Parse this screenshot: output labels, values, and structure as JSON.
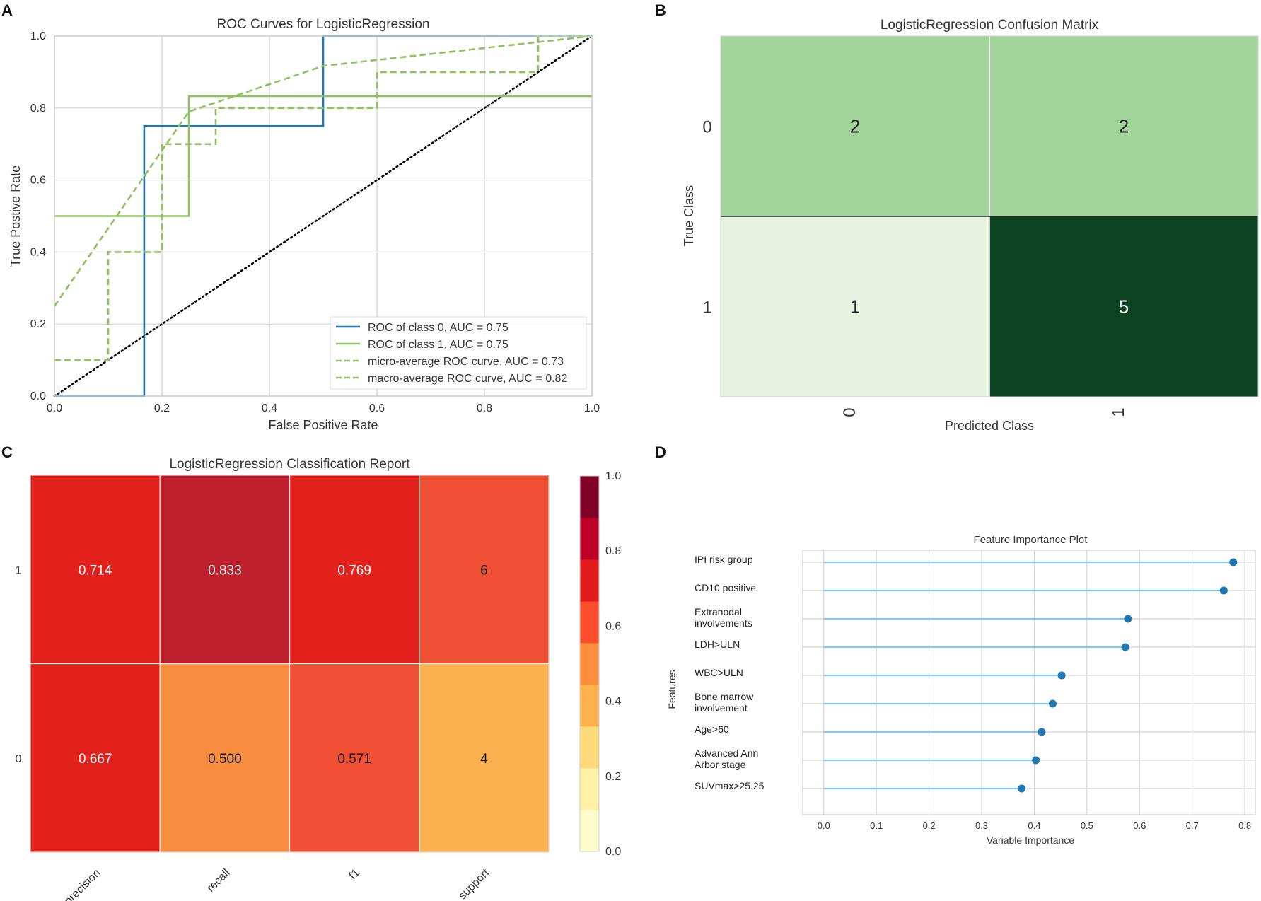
{
  "panel_labels": [
    "A",
    "B",
    "C",
    "D"
  ],
  "chart_data": [
    {
      "type": "line",
      "title": "ROC Curves for LogisticRegression",
      "xlabel": "False Positive Rate",
      "ylabel": "True Postive Rate",
      "xlim": [
        0,
        1
      ],
      "ylim": [
        0,
        1
      ],
      "xticks": [
        "0.0",
        "0.2",
        "0.4",
        "0.6",
        "0.8",
        "1.0"
      ],
      "yticks": [
        "0.0",
        "0.2",
        "0.4",
        "0.6",
        "0.8",
        "1.0"
      ],
      "grid": true,
      "legend_position": "lower-right",
      "series": [
        {
          "name": "ROC of class 0, AUC = 0.75",
          "color": "#1f77b4",
          "dash": false,
          "points": [
            [
              0,
              0
            ],
            [
              0.167,
              0
            ],
            [
              0.167,
              0.75
            ],
            [
              0.5,
              0.75
            ],
            [
              0.5,
              1
            ],
            [
              1,
              1
            ]
          ]
        },
        {
          "name": "ROC of class 1, AUC = 0.75",
          "color": "#8dc35f",
          "dash": false,
          "points": [
            [
              0,
              0.5
            ],
            [
              0.25,
              0.5
            ],
            [
              0.25,
              0.833
            ],
            [
              1,
              0.833
            ]
          ]
        },
        {
          "name": "micro-average ROC curve, AUC = 0.73",
          "color": "#8dc35f",
          "dash": true,
          "points": [
            [
              0,
              0.1
            ],
            [
              0.1,
              0.1
            ],
            [
              0.1,
              0.4
            ],
            [
              0.2,
              0.4
            ],
            [
              0.2,
              0.7
            ],
            [
              0.3,
              0.7
            ],
            [
              0.3,
              0.8
            ],
            [
              0.6,
              0.8
            ],
            [
              0.6,
              0.9
            ],
            [
              0.9,
              0.9
            ],
            [
              0.9,
              1
            ],
            [
              1,
              1
            ]
          ]
        },
        {
          "name": "macro-average ROC curve, AUC = 0.82",
          "color": "#8dc35f",
          "dash": true,
          "points": [
            [
              0,
              0.25
            ],
            [
              0.25,
              0.79
            ],
            [
              0.5,
              0.917
            ],
            [
              1,
              1
            ]
          ]
        }
      ],
      "reference_line": {
        "points": [
          [
            0,
            0
          ],
          [
            1,
            1
          ]
        ],
        "color": "#000000",
        "style": "dotted"
      }
    },
    {
      "type": "heatmap",
      "title": "LogisticRegression Confusion Matrix",
      "xlabel": "Predicted Class",
      "ylabel": "True Class",
      "row_labels": [
        "0",
        "1"
      ],
      "col_labels": [
        "0",
        "1"
      ],
      "values": [
        [
          2,
          2
        ],
        [
          1,
          5
        ]
      ],
      "cell_colors": [
        [
          "#a3d49b",
          "#a3d49b"
        ],
        [
          "#e6f3df",
          "#0c4423"
        ]
      ],
      "text_colors": [
        [
          "#222222",
          "#222222"
        ],
        [
          "#222222",
          "#ffffff"
        ]
      ]
    },
    {
      "type": "heatmap",
      "title": "LogisticRegression Classification Report",
      "row_labels": [
        "1",
        "0"
      ],
      "col_labels": [
        "precision",
        "recall",
        "f1",
        "support"
      ],
      "values": [
        [
          "0.714",
          "0.833",
          "0.769",
          "6"
        ],
        [
          "0.667",
          "0.500",
          "0.571",
          "4"
        ]
      ],
      "cell_colors": [
        [
          "#e3211c",
          "#bd1f2d",
          "#e3211c",
          "#ef4f32"
        ],
        [
          "#e3211c",
          "#f88d40",
          "#ef4f32",
          "#fab04f"
        ]
      ],
      "text_colors": [
        [
          "#ffffff",
          "#ffffff",
          "#ffffff",
          "#111111"
        ],
        [
          "#ffffff",
          "#111111",
          "#111111",
          "#111111"
        ]
      ],
      "colorbar": {
        "range": [
          0,
          1
        ],
        "ticks": [
          "1.0",
          "0.8",
          "0.6",
          "0.4",
          "0.2",
          "0.0"
        ],
        "colors": [
          "#fffccc",
          "#fff0a5",
          "#fedb78",
          "#feb24c",
          "#fe8d3c",
          "#fc4e2a",
          "#e31a1c",
          "#bd0026",
          "#800026"
        ]
      }
    },
    {
      "type": "lollipop",
      "title": "Feature Importance Plot",
      "xlabel": "Variable Importance",
      "ylabel": "Features",
      "xlim": [
        -0.04,
        0.82
      ],
      "xticks": [
        "0.0",
        "0.1",
        "0.2",
        "0.3",
        "0.4",
        "0.5",
        "0.6",
        "0.7",
        "0.8"
      ],
      "line_color": "#87c8ec",
      "dot_color": "#1f77b4",
      "features": [
        {
          "label": [
            "IPI risk group"
          ],
          "value": 0.778
        },
        {
          "label": [
            "CD10 positive"
          ],
          "value": 0.76
        },
        {
          "label": [
            "Extranodal",
            "involvements"
          ],
          "value": 0.578
        },
        {
          "label": [
            "LDH>ULN"
          ],
          "value": 0.573
        },
        {
          "label": [
            "WBC>ULN"
          ],
          "value": 0.452
        },
        {
          "label": [
            "Bone marrow",
            "involvement"
          ],
          "value": 0.435
        },
        {
          "label": [
            "Age>60"
          ],
          "value": 0.414
        },
        {
          "label": [
            "Advanced Ann",
            "Arbor stage"
          ],
          "value": 0.403
        },
        {
          "label": [
            "SUVmax>25.25"
          ],
          "value": 0.376
        }
      ]
    }
  ]
}
